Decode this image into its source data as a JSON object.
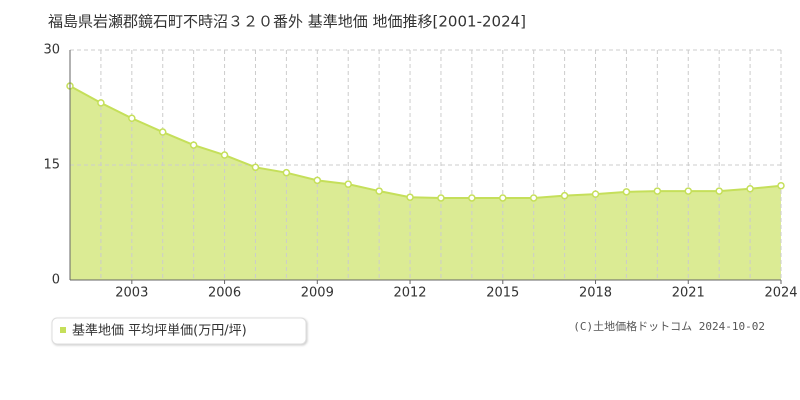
{
  "chart_data": {
    "type": "area",
    "title": "福島県岩瀬郡鏡石町不時沼３２０番外 基準地価 地価推移[2001-2024]",
    "x": [
      2001,
      2002,
      2003,
      2004,
      2005,
      2006,
      2007,
      2008,
      2009,
      2010,
      2011,
      2012,
      2013,
      2014,
      2015,
      2016,
      2017,
      2018,
      2019,
      2020,
      2021,
      2022,
      2023,
      2024
    ],
    "series": [
      {
        "name": "基準地価 平均坪単価(万円/坪)",
        "color": "#c5df5a",
        "values": [
          25.3,
          23.1,
          21.1,
          19.3,
          17.6,
          16.3,
          14.7,
          14.0,
          13.0,
          12.5,
          11.6,
          10.8,
          10.7,
          10.7,
          10.7,
          10.7,
          11.0,
          11.2,
          11.5,
          11.6,
          11.6,
          11.6,
          11.9,
          12.3
        ]
      }
    ],
    "xlim": [
      2001,
      2024
    ],
    "xticks": [
      2003,
      2006,
      2009,
      2012,
      2015,
      2018,
      2021,
      2024
    ],
    "ylim": [
      0,
      30
    ],
    "yticks": [
      0,
      15,
      30
    ],
    "grid": true,
    "credit": "(C)土地価格ドットコム 2024-10-02"
  }
}
